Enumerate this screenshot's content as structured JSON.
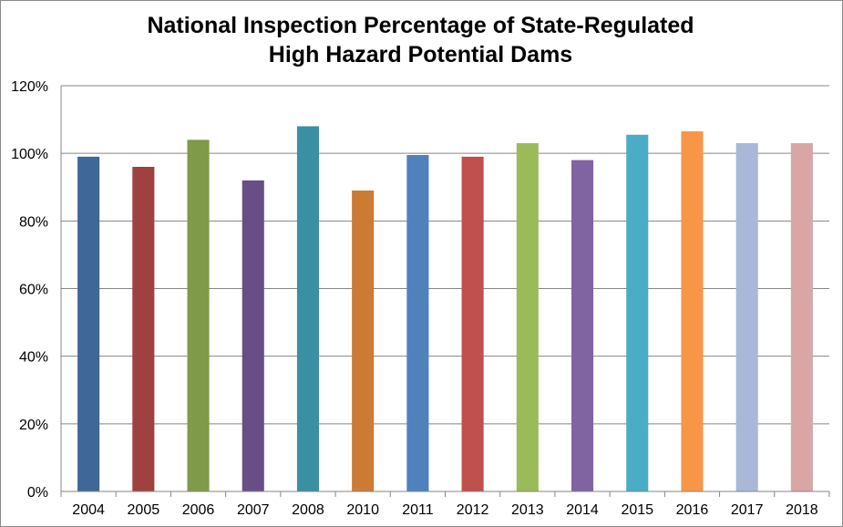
{
  "chart_data": {
    "type": "bar",
    "title": [
      "National Inspection Percentage of State-Regulated",
      "High Hazard Potential Dams"
    ],
    "xlabel": "",
    "ylabel": "",
    "categories": [
      "2004",
      "2005",
      "2006",
      "2007",
      "2008",
      "2010",
      "2011",
      "2012",
      "2013",
      "2014",
      "2015",
      "2016",
      "2017",
      "2018"
    ],
    "values": [
      99,
      96,
      104,
      92,
      108,
      89,
      99.5,
      99,
      103,
      98,
      105.5,
      106.5,
      103,
      103
    ],
    "colors": [
      "#3f6797",
      "#a04040",
      "#7f9a48",
      "#674f86",
      "#3b8fa3",
      "#cc7b35",
      "#4f81bd",
      "#c0504d",
      "#9bbb59",
      "#8064a2",
      "#4bacc6",
      "#f79646",
      "#a9b8d6",
      "#d9a6a5"
    ],
    "ylim": [
      0,
      120
    ],
    "yticks": [
      "0%",
      "20%",
      "40%",
      "60%",
      "80%",
      "100%",
      "120%"
    ],
    "grid": true,
    "legend": "none"
  }
}
